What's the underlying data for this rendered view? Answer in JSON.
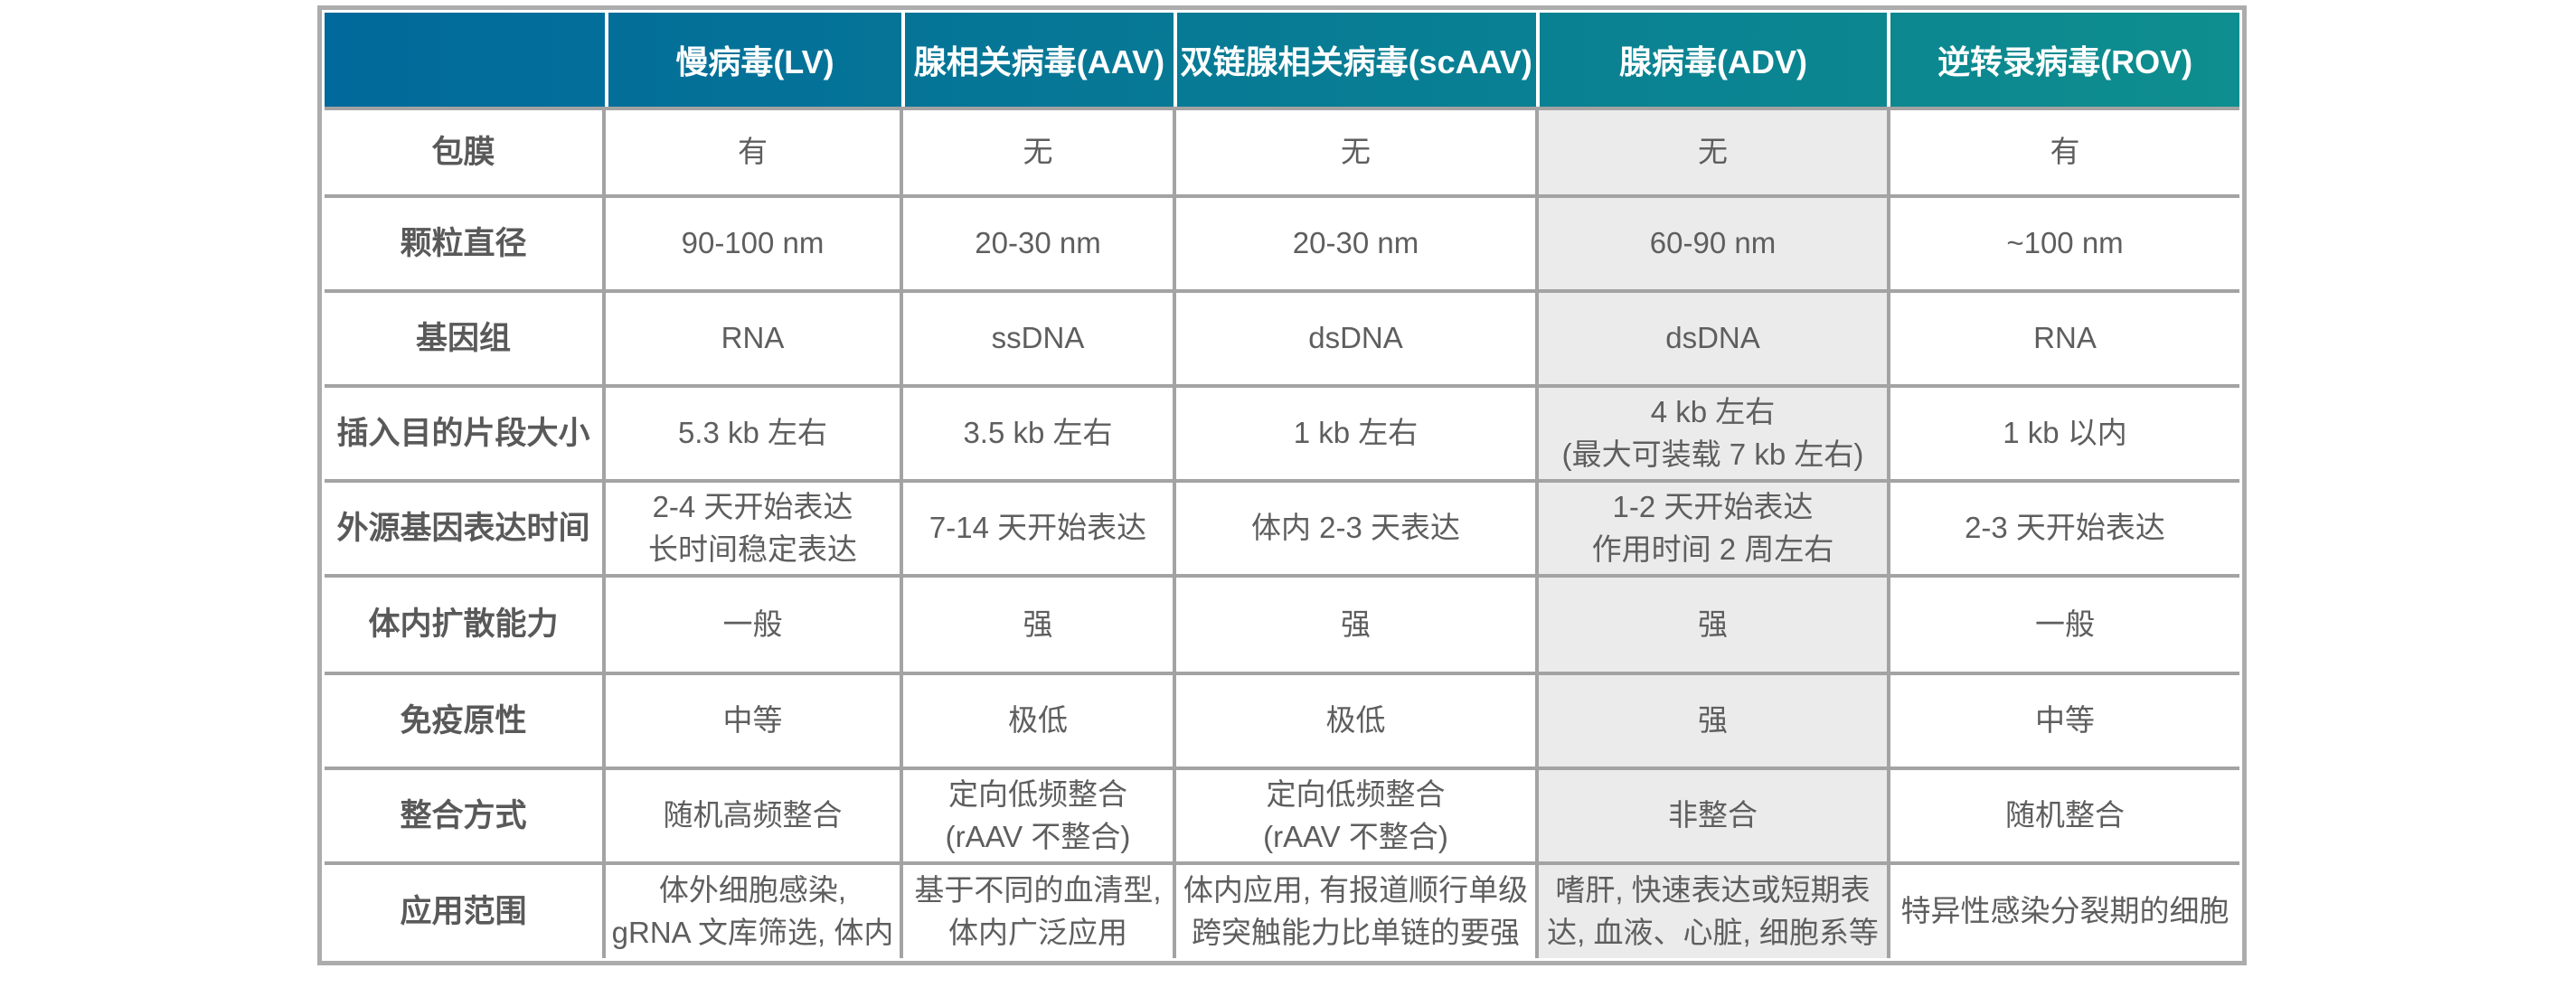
{
  "chart_data": {
    "type": "table",
    "columns": [
      "",
      "慢病毒(LV)",
      "腺相关病毒(AAV)",
      "双链腺相关病毒(scAAV)",
      "腺病毒(ADV)",
      "逆转录病毒(ROV)"
    ],
    "highlighted_column": "腺病毒(ADV)",
    "highlighted_column_index": 4,
    "rows": [
      {
        "label": "包膜",
        "cells": [
          "有",
          "无",
          "无",
          "无",
          "有"
        ]
      },
      {
        "label": "颗粒直径",
        "cells": [
          "90-100 nm",
          "20-30 nm",
          "20-30 nm",
          "60-90 nm",
          "~100 nm"
        ]
      },
      {
        "label": "基因组",
        "cells": [
          "RNA",
          "ssDNA",
          "dsDNA",
          "dsDNA",
          "RNA"
        ]
      },
      {
        "label": "插入目的片段大小",
        "cells": [
          "5.3 kb 左右",
          "3.5 kb 左右",
          "1 kb 左右",
          "4 kb 左右\n(最大可装载 7 kb 左右)",
          "1 kb 以内"
        ]
      },
      {
        "label": "外源基因表达时间",
        "cells": [
          "2-4 天开始表达\n长时间稳定表达",
          "7-14 天开始表达",
          "体内 2-3 天表达",
          "1-2 天开始表达\n作用时间 2 周左右",
          "2-3 天开始表达"
        ]
      },
      {
        "label": "体内扩散能力",
        "cells": [
          "一般",
          "强",
          "强",
          "强",
          "一般"
        ]
      },
      {
        "label": "免疫原性",
        "cells": [
          "中等",
          "极低",
          "极低",
          "强",
          "中等"
        ]
      },
      {
        "label": "整合方式",
        "cells": [
          "随机高频整合",
          "定向低频整合\n(rAAV 不整合)",
          "定向低频整合\n(rAAV 不整合)",
          "非整合",
          "随机整合"
        ]
      },
      {
        "label": "应用范围",
        "cells": [
          "体外细胞感染,\ngRNA 文库筛选, 体内",
          "基于不同的血清型,\n体内广泛应用",
          "体内应用, 有报道顺行单级\n跨突触能力比单链的要强",
          "嗜肝, 快速表达或短期表\n达, 血液、心脏, 细胞系等",
          "特异性感染分裂期的细胞"
        ]
      }
    ],
    "colors": {
      "header_gradient_left": "#01699B",
      "header_gradient_right": "#0E8E8E",
      "header_text": "#FFFFFF",
      "highlight_column_bg": "#EBEBEB",
      "grid_line": "#A3A3A3",
      "outer_border": "#ACACAC",
      "body_text": "#5E5E5E"
    }
  }
}
